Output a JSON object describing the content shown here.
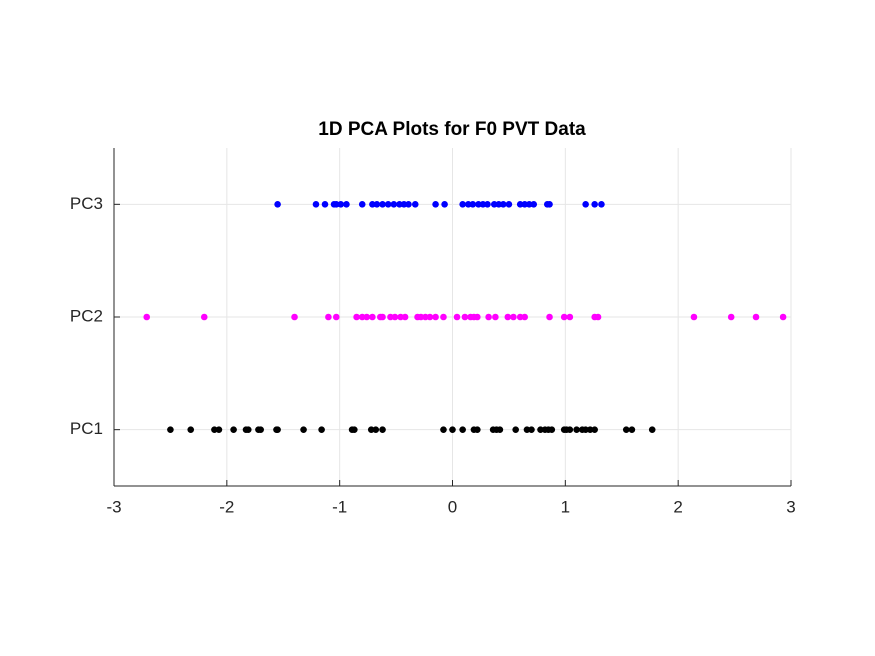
{
  "chart_data": {
    "type": "scatter",
    "title": "1D PCA Plots for F0 PVT Data",
    "categories": [
      "PC1",
      "PC2",
      "PC3"
    ],
    "series": [
      {
        "color": "#000000",
        "values": [
          -2.5,
          -2.32,
          -2.11,
          -2.07,
          -1.94,
          -1.83,
          -1.81,
          -1.72,
          -1.7,
          -1.56,
          -1.55,
          -1.32,
          -1.16,
          -0.89,
          -0.87,
          -0.72,
          -0.68,
          -0.62,
          -0.08,
          0.0,
          0.09,
          0.19,
          0.22,
          0.36,
          0.39,
          0.42,
          0.56,
          0.66,
          0.7,
          0.78,
          0.82,
          0.85,
          0.88,
          0.99,
          1.01,
          1.04,
          1.1,
          1.15,
          1.18,
          1.22,
          1.26,
          1.54,
          1.59,
          1.77
        ]
      },
      {
        "color": "#ff00ff",
        "values": [
          -2.71,
          -2.2,
          -1.4,
          -1.1,
          -1.03,
          -0.85,
          -0.8,
          -0.76,
          -0.71,
          -0.64,
          -0.62,
          -0.55,
          -0.51,
          -0.46,
          -0.42,
          -0.31,
          -0.28,
          -0.24,
          -0.2,
          -0.15,
          -0.08,
          0.04,
          0.11,
          0.16,
          0.19,
          0.22,
          0.32,
          0.38,
          0.49,
          0.54,
          0.6,
          0.64,
          0.86,
          0.99,
          1.04,
          1.26,
          1.29,
          2.14,
          2.47,
          2.69,
          2.93
        ]
      },
      {
        "color": "#0000ff",
        "values": [
          -1.55,
          -1.21,
          -1.13,
          -1.05,
          -1.03,
          -0.99,
          -0.94,
          -0.8,
          -0.71,
          -0.67,
          -0.62,
          -0.57,
          -0.52,
          -0.47,
          -0.43,
          -0.39,
          -0.33,
          -0.15,
          -0.07,
          0.09,
          0.14,
          0.18,
          0.23,
          0.27,
          0.31,
          0.37,
          0.41,
          0.45,
          0.5,
          0.6,
          0.64,
          0.68,
          0.72,
          0.84,
          0.86,
          1.18,
          1.26,
          1.32
        ]
      }
    ],
    "xlim": [
      -3,
      3
    ],
    "xticks": [
      -3,
      -2,
      -1,
      0,
      1,
      2,
      3
    ],
    "grid": true
  }
}
